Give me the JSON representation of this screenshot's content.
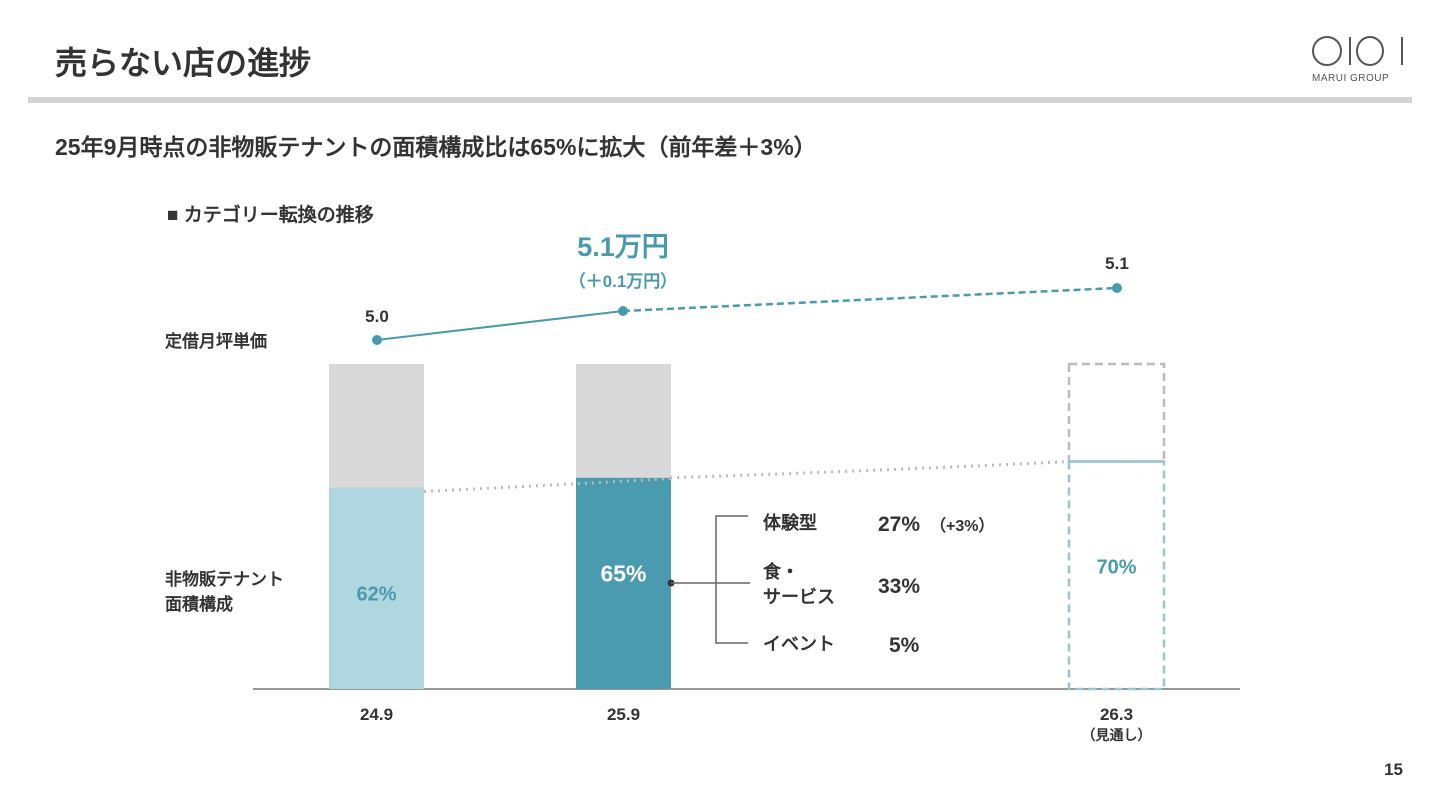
{
  "header": {
    "title": "売らない店の進捗",
    "logo_text": "MARUI GROUP",
    "page_number": "15"
  },
  "subtitle": "25年9月時点の非物販テナントの面積構成比は65%に拡大（前年差＋3%）",
  "section_title": "■ カテゴリー転換の推移",
  "colors": {
    "accent": "#4a9aae",
    "bar_light": "#b0d7df",
    "bar_dark": "#4a9ab0",
    "bar_gray": "#d9d9d9"
  },
  "chart_data": {
    "type": "bar",
    "categories": [
      "24.9",
      "25.9",
      "26.3"
    ],
    "category_notes": [
      "",
      "",
      "（見通し）"
    ],
    "bar_label": "非物販テナント面積構成",
    "values": [
      62,
      65,
      70
    ],
    "value_labels": [
      "62%",
      "65%",
      "70%"
    ],
    "projected": [
      false,
      false,
      true
    ],
    "ylim": [
      0,
      100
    ],
    "line": {
      "label": "定借月坪単価",
      "values": [
        5.0,
        5.1,
        5.1
      ],
      "value_labels": [
        "5.0",
        "5.1万円",
        "5.1"
      ],
      "highlight_note": "（＋0.1万円）",
      "projected_from_index": 1
    },
    "breakdown": [
      {
        "label": "体験型",
        "value": "27%",
        "note": "（+3%）"
      },
      {
        "label": "食・\nサービス",
        "value": "33%",
        "note": ""
      },
      {
        "label": "イベント",
        "value": "5%",
        "note": ""
      }
    ]
  }
}
